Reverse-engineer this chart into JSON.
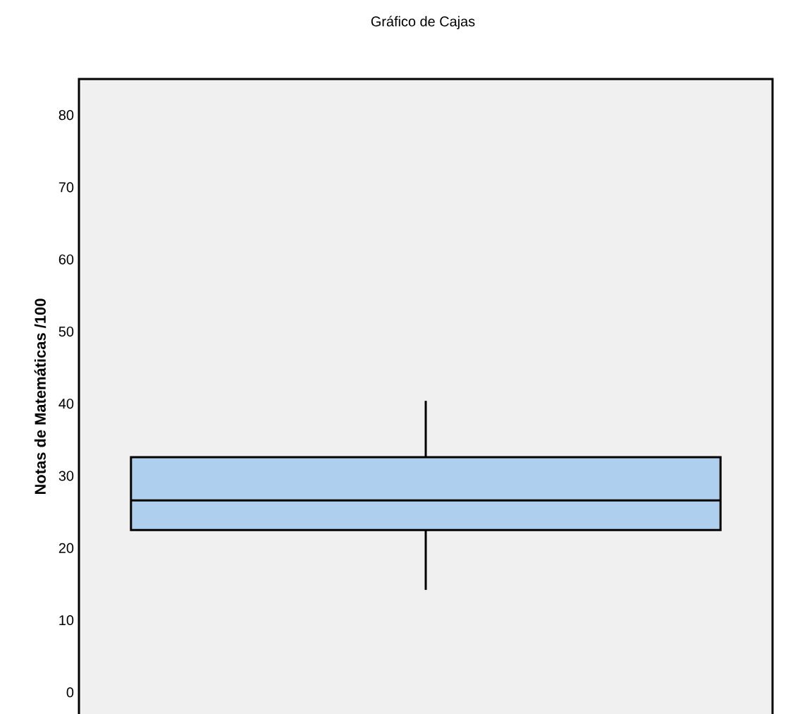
{
  "chart_data": {
    "type": "box",
    "title": "Gráfico de Cajas",
    "ylabel": "Notas de Matemáticas /100",
    "categories": [
      null
    ],
    "color": "#aed0ee",
    "boxes": [
      {
        "low": 14.2,
        "q1": 22.5,
        "median": 26.6,
        "q3": 32.6,
        "high": 40.4
      }
    ],
    "ylim": [
      -3,
      85
    ],
    "yticks": [
      0,
      10,
      20,
      30,
      40,
      50,
      60,
      70,
      80
    ],
    "grid": false
  }
}
